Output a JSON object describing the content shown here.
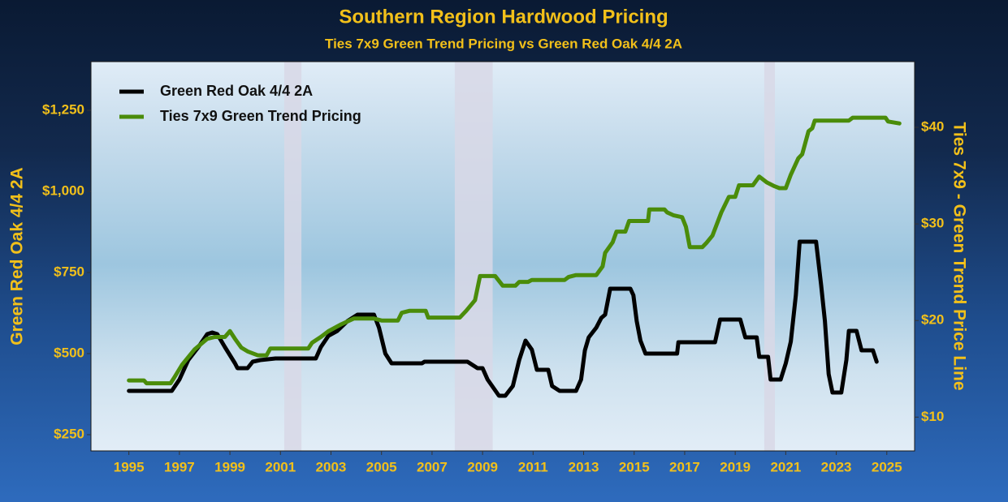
{
  "chart_data": {
    "type": "line",
    "title": "Southern Region Hardwood Pricing",
    "subtitle": "Ties 7x9 Green Trend Pricing vs Green Red Oak 4/4 2A",
    "y_label": "Green Red Oak 4/4 2A",
    "y2_label": "Ties 7x9 - Green Trend Price Line",
    "xlim": [
      1993.5,
      2026.1
    ],
    "xticks": [
      1995,
      1997,
      1999,
      2001,
      2003,
      2005,
      2007,
      2009,
      2011,
      2013,
      2015,
      2017,
      2019,
      2021,
      2023,
      2025
    ],
    "ylim": [
      200,
      1400
    ],
    "yticks": [
      {
        "value": 250,
        "label": "$250"
      },
      {
        "value": 500,
        "label": "$500"
      },
      {
        "value": 750,
        "label": "$750"
      },
      {
        "value": 1000,
        "label": "$1,000"
      },
      {
        "value": 1250,
        "label": "$1,250"
      }
    ],
    "y2lim": [
      6.5,
      46.8
    ],
    "y2ticks": [
      {
        "value": 10,
        "label": "$10"
      },
      {
        "value": 20,
        "label": "$20"
      },
      {
        "value": 30,
        "label": "$30"
      },
      {
        "value": 40,
        "label": "$40"
      }
    ],
    "shaded_periods": [
      [
        2001.15,
        2001.83
      ],
      [
        2007.9,
        2009.4
      ],
      [
        2020.15,
        2020.57
      ]
    ],
    "shade_color": "#d8d8e6",
    "legend": "top-left",
    "series": [
      {
        "name": "Green Red Oak 4/4 2A",
        "color": "#000000",
        "x": [
          1995,
          1996.7,
          1997.0,
          1997.35,
          1997.75,
          1998.1,
          1998.3,
          1998.5,
          1998.8,
          1999.2,
          1999.3,
          1999.7,
          1999.9,
          2000.2,
          2000.8,
          2002.4,
          2002.6,
          2002.9,
          2003.25,
          2003.65,
          2004.05,
          2004.7,
          2004.9,
          2005.15,
          2005.4,
          2006.6,
          2006.7,
          2008.4,
          2008.8,
          2009.0,
          2009.2,
          2009.65,
          2009.9,
          2010.2,
          2010.45,
          2010.7,
          2010.95,
          2011.15,
          2011.6,
          2011.75,
          2012.05,
          2012.7,
          2012.9,
          2013.05,
          2013.2,
          2013.5,
          2013.7,
          2013.85,
          2014.05,
          2014.85,
          2014.97,
          2015.1,
          2015.25,
          2015.45,
          2016.7,
          2016.75,
          2018.2,
          2018.4,
          2019.2,
          2019.4,
          2019.85,
          2019.95,
          2020.3,
          2020.4,
          2020.8,
          2021.0,
          2021.2,
          2021.4,
          2021.55,
          2022.2,
          2022.4,
          2022.55,
          2022.7,
          2022.85,
          2023.2,
          2023.4,
          2023.5,
          2023.8,
          2024.0,
          2024.45,
          2024.6
        ],
        "values": [
          385,
          385,
          420,
          480,
          520,
          560,
          565,
          560,
          520,
          470,
          455,
          455,
          475,
          480,
          485,
          485,
          520,
          555,
          570,
          600,
          620,
          620,
          580,
          500,
          470,
          470,
          475,
          475,
          455,
          455,
          420,
          370,
          370,
          400,
          480,
          540,
          512,
          450,
          450,
          400,
          385,
          385,
          420,
          510,
          550,
          580,
          610,
          620,
          700,
          700,
          680,
          600,
          540,
          500,
          500,
          535,
          535,
          605,
          605,
          550,
          550,
          490,
          490,
          420,
          420,
          470,
          537,
          680,
          845,
          845,
          712,
          600,
          437,
          380,
          380,
          480,
          570,
          570,
          510,
          510,
          475
        ]
      },
      {
        "name": "Ties 7x9 Green Trend Pricing",
        "color": "#4a8c0a",
        "axis": "y2",
        "x": [
          1995,
          1995.6,
          1995.7,
          1996.65,
          1996.8,
          1997.1,
          1997.6,
          1998.1,
          1998.4,
          1998.8,
          1999.0,
          1999.2,
          1999.45,
          1999.7,
          2000.1,
          2000.45,
          2000.6,
          2002.1,
          2002.25,
          2002.6,
          2002.9,
          2003.4,
          2003.9,
          2004.7,
          2005.0,
          2005.65,
          2005.8,
          2006.1,
          2006.75,
          2006.85,
          2008.1,
          2008.35,
          2008.7,
          2008.9,
          2009.0,
          2009.5,
          2009.8,
          2010.3,
          2010.45,
          2010.8,
          2010.95,
          2012.25,
          2012.4,
          2012.7,
          2013.5,
          2013.75,
          2013.85,
          2014.15,
          2014.3,
          2014.65,
          2014.8,
          2015.55,
          2015.6,
          2016.2,
          2016.3,
          2016.55,
          2016.9,
          2017.05,
          2017.2,
          2017.7,
          2017.85,
          2018.1,
          2018.45,
          2018.75,
          2019.0,
          2019.15,
          2019.7,
          2019.95,
          2020.25,
          2020.55,
          2020.75,
          2021.0,
          2021.2,
          2021.5,
          2021.65,
          2021.9,
          2022.05,
          2022.15,
          2023.5,
          2023.65,
          2024.95,
          2025.05,
          2025.5
        ],
        "values": [
          13.8,
          13.8,
          13.5,
          13.5,
          14.1,
          15.4,
          17.0,
          18.1,
          18.3,
          18.3,
          18.9,
          18.1,
          17.2,
          16.8,
          16.4,
          16.4,
          17.1,
          17.1,
          17.7,
          18.3,
          18.9,
          19.6,
          20.2,
          20.2,
          20.0,
          20.0,
          20.8,
          21.0,
          21.0,
          20.3,
          20.3,
          21.0,
          22.1,
          24.6,
          24.6,
          24.6,
          23.6,
          23.6,
          24.0,
          24.0,
          24.2,
          24.2,
          24.5,
          24.7,
          24.7,
          25.6,
          27.0,
          28.1,
          29.2,
          29.2,
          30.3,
          30.3,
          31.5,
          31.5,
          31.2,
          30.9,
          30.7,
          29.7,
          27.6,
          27.6,
          28.0,
          28.8,
          31.2,
          32.8,
          32.8,
          34.0,
          34.0,
          34.9,
          34.3,
          33.9,
          33.7,
          33.7,
          35.1,
          36.8,
          37.2,
          39.6,
          39.9,
          40.7,
          40.7,
          41.0,
          41.0,
          40.6,
          40.4
        ]
      }
    ]
  }
}
